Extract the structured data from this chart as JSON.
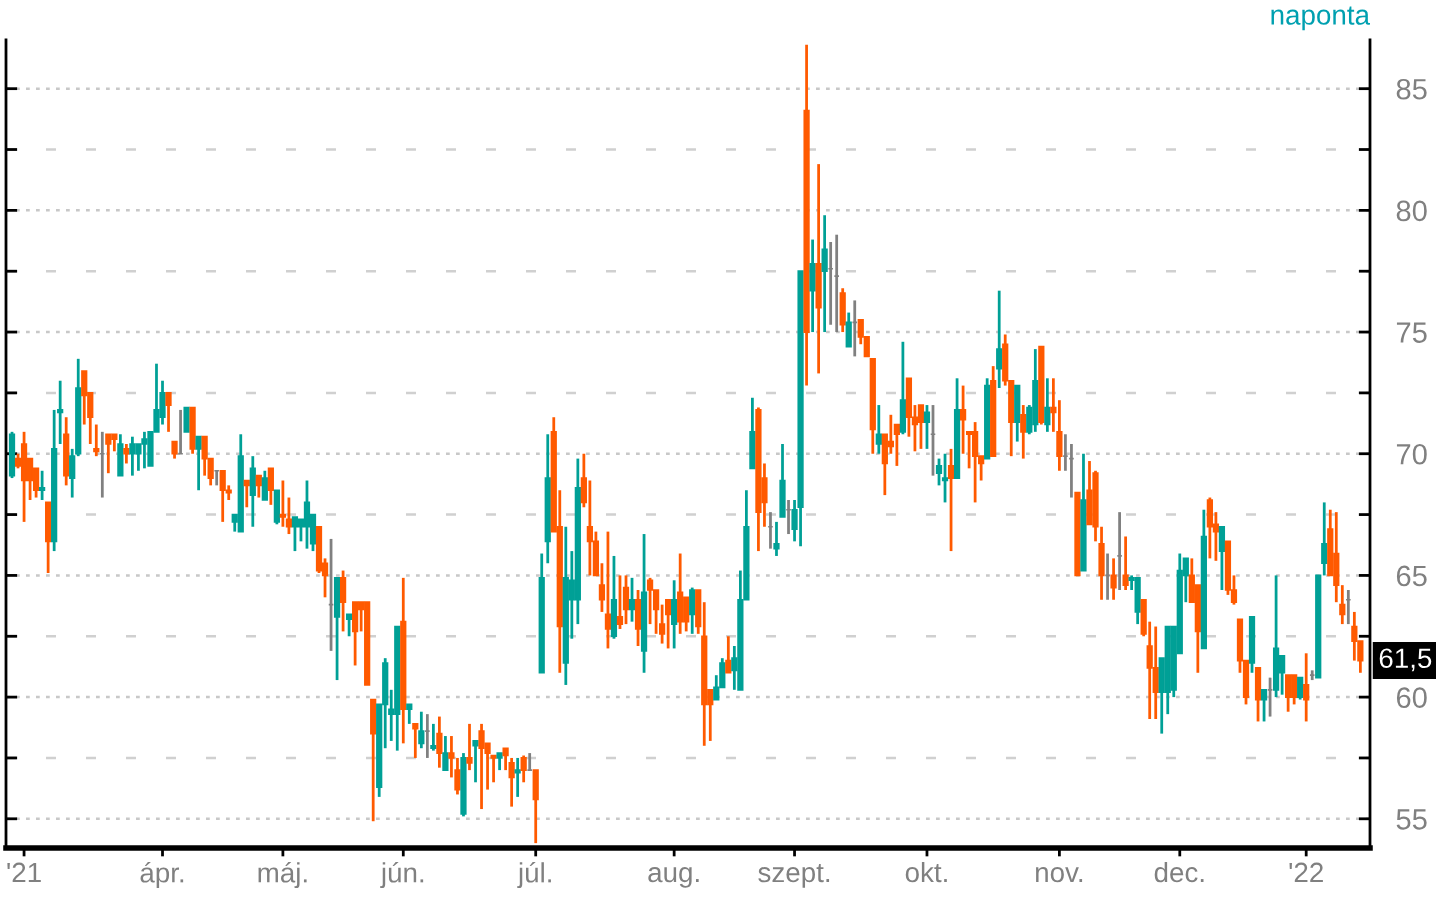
{
  "chart_data": {
    "type": "candlestick",
    "categories": [
      null,
      null,
      "'21",
      null,
      null,
      null,
      null,
      null,
      null,
      null,
      null,
      null,
      null,
      null,
      null,
      null,
      null,
      null,
      null,
      null,
      null,
      null,
      null,
      null,
      null,
      "ápr.",
      null,
      null,
      null,
      null,
      null,
      null,
      null,
      null,
      null,
      null,
      null,
      null,
      null,
      null,
      null,
      null,
      null,
      null,
      null,
      "máj.",
      null,
      null,
      null,
      null,
      null,
      null,
      null,
      null,
      null,
      null,
      null,
      null,
      null,
      null,
      null,
      null,
      null,
      null,
      null,
      "jún.",
      null,
      null,
      null,
      null,
      null,
      null,
      null,
      null,
      null,
      null,
      null,
      null,
      null,
      null,
      null,
      null,
      null,
      null,
      null,
      null,
      null,
      "júl.",
      null,
      null,
      null,
      null,
      null,
      null,
      null,
      null,
      null,
      null,
      null,
      null,
      null,
      null,
      null,
      null,
      null,
      null,
      null,
      null,
      null,
      null,
      "aug.",
      null,
      null,
      null,
      null,
      null,
      null,
      null,
      null,
      null,
      null,
      null,
      null,
      null,
      null,
      null,
      null,
      null,
      null,
      null,
      "szept.",
      null,
      null,
      null,
      null,
      null,
      null,
      null,
      null,
      null,
      null,
      null,
      null,
      null,
      null,
      null,
      null,
      null,
      null,
      null,
      null,
      null,
      "okt.",
      null,
      null,
      null,
      null,
      null,
      null,
      null,
      null,
      null,
      null,
      null,
      null,
      null,
      null,
      null,
      null,
      null,
      null,
      null,
      null,
      null,
      "nov.",
      null,
      null,
      null,
      null,
      null,
      null,
      null,
      null,
      null,
      null,
      null,
      null,
      null,
      null,
      null,
      null,
      null,
      null,
      null,
      "dec.",
      null,
      null,
      null,
      null,
      null,
      null,
      null,
      null,
      null,
      null,
      null,
      null,
      null,
      null,
      null,
      null,
      null,
      null,
      null,
      null,
      "'22",
      null,
      null,
      null,
      null,
      null,
      null,
      null,
      null,
      null
    ],
    "ohlc": [
      [
        69.1,
        70.9,
        69.0,
        70.8
      ],
      [
        69.8,
        70.0,
        69.4,
        69.5
      ],
      [
        70.4,
        70.9,
        67.2,
        68.9
      ],
      [
        69.8,
        69.8,
        68.1,
        68.9
      ],
      [
        69.4,
        69.4,
        68.2,
        68.5
      ],
      [
        68.5,
        69.3,
        68.1,
        68.6
      ],
      [
        68.0,
        68.0,
        65.1,
        66.4
      ],
      [
        66.4,
        71.8,
        66.0,
        70.2
      ],
      [
        71.7,
        73.0,
        70.4,
        71.8
      ],
      [
        70.8,
        71.5,
        68.7,
        69.1
      ],
      [
        69.0,
        70.2,
        68.2,
        69.9
      ],
      [
        70.0,
        73.9,
        69.9,
        72.7
      ],
      [
        73.4,
        73.4,
        71.2,
        72.4
      ],
      [
        72.5,
        72.5,
        70.4,
        71.5
      ],
      [
        70.2,
        71.2,
        69.9,
        70.1
      ],
      [
        70.0,
        70.9,
        68.2,
        70.0
      ],
      [
        70.8,
        70.8,
        69.2,
        70.4
      ],
      [
        70.8,
        70.8,
        70.1,
        70.6
      ],
      [
        69.1,
        70.8,
        69.1,
        70.4
      ],
      [
        70.2,
        70.4,
        69.6,
        70.0
      ],
      [
        70.0,
        70.7,
        69.1,
        70.4
      ],
      [
        70.0,
        70.4,
        69.3,
        70.4
      ],
      [
        70.4,
        70.9,
        69.4,
        70.6
      ],
      [
        69.5,
        70.9,
        69.5,
        70.9
      ],
      [
        70.9,
        73.7,
        70.9,
        71.8
      ],
      [
        71.5,
        73.0,
        71.2,
        72.5
      ],
      [
        72.5,
        72.5,
        70.9,
        72.0
      ],
      [
        70.5,
        70.5,
        69.8,
        70.0
      ],
      [
        70.0,
        71.8,
        70.0,
        70.0
      ],
      [
        70.9,
        71.9,
        70.9,
        71.9
      ],
      [
        71.9,
        71.9,
        70.0,
        70.2
      ],
      [
        70.2,
        70.7,
        68.5,
        70.7
      ],
      [
        70.7,
        70.7,
        69.1,
        69.8
      ],
      [
        69.8,
        69.8,
        68.7,
        69.0
      ],
      [
        69.3,
        69.3,
        68.7,
        69.3
      ],
      [
        69.3,
        69.3,
        67.2,
        68.5
      ],
      [
        68.5,
        68.7,
        68.1,
        68.4
      ],
      [
        67.2,
        67.5,
        66.8,
        67.5
      ],
      [
        66.8,
        70.8,
        66.8,
        69.9
      ],
      [
        68.9,
        68.9,
        67.8,
        68.7
      ],
      [
        68.3,
        69.9,
        67.0,
        69.4
      ],
      [
        69.1,
        69.1,
        68.2,
        68.7
      ],
      [
        68.1,
        69.3,
        68.1,
        69.0
      ],
      [
        69.4,
        69.4,
        67.9,
        68.5
      ],
      [
        67.2,
        68.5,
        67.1,
        68.5
      ],
      [
        67.5,
        68.9,
        67.0,
        67.4
      ],
      [
        67.3,
        68.2,
        66.7,
        67.0
      ],
      [
        67.0,
        67.4,
        66.0,
        67.4
      ],
      [
        67.0,
        67.3,
        66.4,
        67.3
      ],
      [
        67.0,
        68.9,
        66.1,
        68.0
      ],
      [
        66.3,
        67.5,
        66.0,
        67.5
      ],
      [
        67.0,
        67.0,
        65.1,
        65.2
      ],
      [
        65.5,
        65.7,
        64.1,
        65.0
      ],
      [
        63.8,
        66.5,
        61.9,
        63.8
      ],
      [
        63.3,
        64.9,
        60.7,
        64.9
      ],
      [
        64.9,
        65.2,
        62.7,
        63.9
      ],
      [
        63.2,
        63.4,
        62.5,
        63.4
      ],
      [
        63.9,
        63.9,
        61.3,
        62.7
      ],
      [
        63.9,
        63.9,
        62.7,
        63.6
      ],
      [
        63.9,
        63.9,
        60.5,
        60.5
      ],
      [
        59.9,
        59.9,
        54.9,
        58.5
      ],
      [
        56.3,
        59.7,
        55.9,
        59.7
      ],
      [
        59.7,
        61.6,
        57.9,
        61.4
      ],
      [
        59.3,
        60.3,
        58.2,
        59.5
      ],
      [
        59.3,
        62.9,
        57.8,
        62.9
      ],
      [
        63.1,
        64.9,
        58.1,
        59.5
      ],
      [
        59.5,
        59.7,
        58.9,
        59.7
      ],
      [
        58.9,
        58.9,
        57.5,
        58.7
      ],
      [
        58.1,
        59.4,
        57.9,
        58.6
      ],
      [
        58.6,
        59.3,
        57.5,
        58.6
      ],
      [
        57.9,
        58.9,
        57.8,
        58.0
      ],
      [
        58.5,
        59.2,
        57.1,
        57.7
      ],
      [
        57.0,
        58.4,
        57.0,
        57.7
      ],
      [
        57.7,
        58.4,
        56.7,
        57.5
      ],
      [
        57.0,
        57.5,
        56.0,
        56.2
      ],
      [
        55.2,
        57.7,
        55.1,
        57.5
      ],
      [
        57.5,
        58.9,
        57.0,
        57.3
      ],
      [
        58.0,
        58.2,
        56.5,
        58.2
      ],
      [
        58.6,
        58.9,
        55.4,
        57.9
      ],
      [
        58.1,
        58.1,
        56.2,
        57.7
      ],
      [
        57.6,
        57.6,
        56.5,
        57.5
      ],
      [
        57.5,
        57.7,
        57.0,
        57.7
      ],
      [
        57.9,
        57.9,
        57.0,
        57.6
      ],
      [
        57.3,
        57.5,
        55.5,
        56.7
      ],
      [
        56.9,
        57.5,
        55.9,
        57.0
      ],
      [
        57.5,
        57.6,
        56.5,
        57.0
      ],
      [
        57.0,
        57.7,
        57.0,
        57.0
      ],
      [
        57.0,
        57.0,
        54.0,
        55.8
      ],
      [
        61.0,
        65.9,
        61.0,
        64.9
      ],
      [
        66.4,
        70.8,
        65.5,
        69.0
      ],
      [
        70.9,
        71.5,
        66.8,
        66.8
      ],
      [
        67.0,
        68.5,
        61.0,
        62.9
      ],
      [
        61.4,
        67.0,
        60.5,
        64.9
      ],
      [
        64.0,
        66.0,
        62.4,
        64.8
      ],
      [
        64.0,
        69.8,
        63.0,
        68.6
      ],
      [
        69.0,
        70.0,
        67.8,
        68.0
      ],
      [
        67.0,
        68.9,
        65.0,
        66.4
      ],
      [
        66.4,
        66.8,
        65.0,
        65.0
      ],
      [
        64.6,
        65.5,
        63.5,
        64.0
      ],
      [
        63.4,
        66.8,
        62.0,
        62.8
      ],
      [
        62.5,
        65.8,
        62.4,
        64.0
      ],
      [
        63.3,
        65.0,
        62.8,
        63.0
      ],
      [
        64.5,
        65.0,
        63.0,
        63.6
      ],
      [
        63.6,
        64.9,
        63.1,
        64.0
      ],
      [
        64.0,
        64.4,
        62.1,
        62.8
      ],
      [
        61.9,
        66.7,
        61.0,
        64.3
      ],
      [
        64.8,
        64.9,
        63.0,
        64.4
      ],
      [
        64.4,
        64.4,
        62.6,
        63.6
      ],
      [
        63.0,
        63.8,
        62.2,
        62.6
      ],
      [
        64.0,
        64.0,
        62.0,
        63.4
      ],
      [
        63.0,
        64.8,
        62.0,
        64.0
      ],
      [
        64.3,
        65.9,
        62.6,
        63.1
      ],
      [
        64.1,
        64.1,
        62.7,
        63.1
      ],
      [
        63.4,
        64.5,
        62.6,
        64.4
      ],
      [
        64.4,
        64.4,
        62.6,
        62.9
      ],
      [
        62.5,
        63.9,
        58.0,
        59.7
      ],
      [
        60.3,
        60.3,
        58.2,
        59.7
      ],
      [
        59.9,
        60.9,
        59.9,
        60.4
      ],
      [
        60.4,
        61.6,
        60.4,
        61.4
      ],
      [
        61.5,
        62.5,
        61.0,
        61.0
      ],
      [
        61.1,
        62.1,
        60.3,
        61.6
      ],
      [
        60.3,
        65.2,
        60.3,
        64.0
      ],
      [
        64.0,
        68.5,
        64.0,
        67.0
      ],
      [
        69.4,
        72.3,
        69.4,
        70.9
      ],
      [
        71.8,
        71.9,
        66.0,
        67.6
      ],
      [
        69.0,
        69.6,
        67.0,
        68.0
      ],
      [
        67.0,
        67.6,
        66.1,
        67.0
      ],
      [
        66.1,
        67.2,
        65.8,
        66.3
      ],
      [
        67.4,
        70.4,
        67.4,
        68.9
      ],
      [
        67.7,
        68.1,
        66.7,
        67.7
      ],
      [
        66.9,
        68.1,
        66.4,
        67.7
      ],
      [
        67.8,
        77.5,
        66.2,
        77.5
      ],
      [
        84.1,
        86.8,
        72.8,
        75.0
      ],
      [
        76.7,
        78.8,
        75.0,
        77.8
      ],
      [
        77.8,
        81.9,
        73.3,
        76.0
      ],
      [
        77.5,
        79.8,
        75.0,
        78.4
      ],
      [
        77.6,
        78.7,
        75.3,
        77.6
      ],
      [
        77.3,
        79.0,
        75.0,
        77.3
      ],
      [
        76.6,
        76.8,
        75.0,
        75.3
      ],
      [
        74.4,
        75.8,
        74.4,
        75.4
      ],
      [
        75.4,
        76.3,
        74.0,
        75.4
      ],
      [
        75.5,
        75.5,
        74.5,
        74.8
      ],
      [
        74.8,
        74.8,
        74.0,
        74.0
      ],
      [
        73.9,
        73.9,
        70.0,
        71.0
      ],
      [
        70.4,
        72.0,
        70.0,
        70.8
      ],
      [
        70.8,
        70.8,
        68.3,
        69.6
      ],
      [
        70.5,
        71.6,
        70.0,
        70.3
      ],
      [
        71.2,
        71.2,
        69.5,
        70.8
      ],
      [
        70.9,
        74.6,
        70.8,
        72.2
      ],
      [
        73.1,
        73.1,
        70.7,
        71.5
      ],
      [
        71.5,
        72.0,
        70.1,
        71.2
      ],
      [
        72.0,
        72.0,
        70.2,
        71.3
      ],
      [
        71.3,
        72.0,
        70.2,
        71.7
      ],
      [
        70.8,
        72.0,
        69.1,
        70.8
      ],
      [
        69.2,
        69.8,
        68.7,
        69.5
      ],
      [
        68.9,
        70.0,
        68.0,
        69.0
      ],
      [
        69.5,
        70.2,
        66.0,
        69.0
      ],
      [
        69.0,
        73.1,
        69.0,
        71.8
      ],
      [
        71.8,
        72.8,
        70.0,
        71.4
      ],
      [
        70.9,
        70.9,
        69.4,
        70.8
      ],
      [
        70.9,
        71.3,
        68.0,
        69.9
      ],
      [
        69.9,
        69.9,
        68.9,
        69.6
      ],
      [
        69.8,
        73.1,
        69.8,
        72.8
      ],
      [
        73.0,
        73.6,
        69.9,
        69.9
      ],
      [
        73.5,
        76.7,
        72.7,
        74.3
      ],
      [
        74.5,
        74.9,
        72.8,
        73.0
      ],
      [
        73.0,
        73.0,
        69.9,
        71.3
      ],
      [
        71.3,
        72.8,
        70.5,
        72.8
      ],
      [
        71.6,
        72.0,
        69.8,
        70.9
      ],
      [
        70.9,
        72.0,
        70.8,
        71.9
      ],
      [
        71.2,
        74.3,
        70.9,
        73.0
      ],
      [
        74.4,
        74.4,
        71.2,
        71.3
      ],
      [
        71.2,
        73.1,
        70.9,
        71.9
      ],
      [
        71.9,
        73.1,
        70.9,
        71.7
      ],
      [
        70.9,
        72.2,
        69.3,
        69.9
      ],
      [
        69.9,
        70.8,
        69.3,
        69.9
      ],
      [
        69.8,
        70.4,
        68.2,
        69.8
      ],
      [
        68.4,
        68.4,
        65.0,
        65.0
      ],
      [
        65.2,
        70.0,
        65.2,
        68.1
      ],
      [
        68.5,
        69.7,
        67.1,
        67.1
      ],
      [
        69.2,
        69.3,
        66.4,
        67.0
      ],
      [
        66.3,
        67.0,
        64.0,
        65.0
      ],
      [
        65.0,
        65.9,
        64.0,
        65.0
      ],
      [
        65.0,
        65.7,
        64.0,
        64.5
      ],
      [
        65.8,
        67.6,
        64.4,
        65.8
      ],
      [
        65.0,
        66.6,
        64.4,
        64.6
      ],
      [
        64.8,
        65.0,
        64.4,
        64.9
      ],
      [
        63.5,
        64.9,
        63.0,
        64.9
      ],
      [
        64.0,
        64.0,
        62.5,
        62.6
      ],
      [
        62.1,
        63.1,
        59.1,
        61.2
      ],
      [
        61.2,
        62.9,
        59.1,
        60.2
      ],
      [
        60.2,
        61.6,
        58.5,
        61.6
      ],
      [
        60.2,
        62.9,
        59.3,
        62.9
      ],
      [
        60.3,
        62.9,
        60.0,
        62.9
      ],
      [
        61.8,
        65.9,
        61.8,
        65.2
      ],
      [
        65.0,
        65.7,
        63.9,
        65.7
      ],
      [
        65.0,
        65.7,
        63.9,
        63.9
      ],
      [
        64.6,
        64.6,
        61.0,
        62.7
      ],
      [
        62.0,
        67.7,
        62.0,
        66.6
      ],
      [
        68.1,
        68.2,
        65.7,
        67.0
      ],
      [
        67.1,
        67.6,
        65.6,
        66.8
      ],
      [
        66.0,
        67.0,
        64.4,
        67.0
      ],
      [
        66.4,
        66.4,
        64.2,
        64.4
      ],
      [
        64.4,
        65.0,
        63.8,
        63.9
      ],
      [
        63.2,
        63.2,
        61.0,
        61.5
      ],
      [
        61.5,
        61.5,
        59.7,
        60.0
      ],
      [
        61.4,
        63.3,
        61.0,
        63.3
      ],
      [
        61.2,
        61.2,
        59.0,
        59.9
      ],
      [
        59.9,
        60.3,
        59.0,
        60.3
      ],
      [
        60.3,
        60.8,
        59.2,
        60.3
      ],
      [
        60.3,
        65.0,
        60.0,
        62.0
      ],
      [
        61.0,
        61.7,
        60.1,
        61.7
      ],
      [
        60.9,
        60.9,
        59.4,
        60.0
      ],
      [
        60.9,
        60.9,
        59.7,
        60.0
      ],
      [
        60.0,
        60.8,
        59.9,
        60.8
      ],
      [
        60.5,
        61.8,
        59.0,
        59.9
      ],
      [
        60.9,
        61.1,
        60.7,
        60.9
      ],
      [
        60.8,
        65.0,
        60.8,
        65.0
      ],
      [
        65.5,
        68.0,
        65.0,
        66.3
      ],
      [
        66.9,
        67.7,
        65.0,
        65.0
      ],
      [
        65.9,
        67.6,
        63.9,
        64.6
      ],
      [
        63.8,
        64.6,
        63.0,
        63.4
      ],
      [
        64.0,
        64.4,
        63.0,
        64.0
      ],
      [
        62.9,
        63.5,
        61.5,
        62.3
      ],
      [
        62.3,
        62.3,
        61.0,
        61.5
      ]
    ],
    "colors": [
      "#00a096",
      "#ff5a00",
      "#ff5a00",
      "#ff5a00",
      "#ff5a00",
      "#00a096",
      "#ff5a00",
      "#00a096",
      "#00a096",
      "#ff5a00",
      "#00a096",
      "#00a096",
      "#ff5a00",
      "#ff5a00",
      "#ff5a00",
      "#808080",
      "#ff5a00",
      "#ff5a00",
      "#00a096",
      "#ff5a00",
      "#00a096",
      "#00a096",
      "#00a096",
      "#00a096",
      "#00a096",
      "#00a096",
      "#ff5a00",
      "#ff5a00",
      "#808080",
      "#00a096",
      "#ff5a00",
      "#00a096",
      "#ff5a00",
      "#ff5a00",
      "#808080",
      "#ff5a00",
      "#ff5a00",
      "#00a096",
      "#00a096",
      "#ff5a00",
      "#00a096",
      "#ff5a00",
      "#00a096",
      "#ff5a00",
      "#00a096",
      "#ff5a00",
      "#ff5a00",
      "#00a096",
      "#00a096",
      "#00a096",
      "#00a096",
      "#ff5a00",
      "#ff5a00",
      "#808080",
      "#00a096",
      "#ff5a00",
      "#00a096",
      "#ff5a00",
      "#ff5a00",
      "#ff5a00",
      "#ff5a00",
      "#00a096",
      "#00a096",
      "#00a096",
      "#00a096",
      "#ff5a00",
      "#00a096",
      "#ff5a00",
      "#00a096",
      "#808080",
      "#00a096",
      "#ff5a00",
      "#00a096",
      "#ff5a00",
      "#ff5a00",
      "#00a096",
      "#ff5a00",
      "#00a096",
      "#ff5a00",
      "#ff5a00",
      "#ff5a00",
      "#00a096",
      "#ff5a00",
      "#ff5a00",
      "#00a096",
      "#ff5a00",
      "#808080",
      "#ff5a00",
      "#00a096",
      "#00a096",
      "#ff5a00",
      "#ff5a00",
      "#00a096",
      "#00a096",
      "#00a096",
      "#ff5a00",
      "#ff5a00",
      "#ff5a00",
      "#ff5a00",
      "#ff5a00",
      "#00a096",
      "#ff5a00",
      "#ff5a00",
      "#00a096",
      "#ff5a00",
      "#00a096",
      "#ff5a00",
      "#ff5a00",
      "#ff5a00",
      "#ff5a00",
      "#00a096",
      "#ff5a00",
      "#ff5a00",
      "#00a096",
      "#ff5a00",
      "#ff5a00",
      "#ff5a00",
      "#00a096",
      "#00a096",
      "#ff5a00",
      "#00a096",
      "#00a096",
      "#00a096",
      "#00a096",
      "#ff5a00",
      "#ff5a00",
      "#808080",
      "#00a096",
      "#00a096",
      "#808080",
      "#00a096",
      "#00a096",
      "#ff5a00",
      "#00a096",
      "#ff5a00",
      "#00a096",
      "#808080",
      "#808080",
      "#ff5a00",
      "#00a096",
      "#808080",
      "#ff5a00",
      "#ff5a00",
      "#ff5a00",
      "#00a096",
      "#ff5a00",
      "#ff5a00",
      "#ff5a00",
      "#00a096",
      "#ff5a00",
      "#ff5a00",
      "#ff5a00",
      "#00a096",
      "#808080",
      "#00a096",
      "#00a096",
      "#ff5a00",
      "#00a096",
      "#ff5a00",
      "#ff5a00",
      "#ff5a00",
      "#ff5a00",
      "#00a096",
      "#ff5a00",
      "#00a096",
      "#ff5a00",
      "#ff5a00",
      "#00a096",
      "#ff5a00",
      "#00a096",
      "#00a096",
      "#ff5a00",
      "#00a096",
      "#ff5a00",
      "#ff5a00",
      "#808080",
      "#808080",
      "#ff5a00",
      "#00a096",
      "#ff5a00",
      "#ff5a00",
      "#ff5a00",
      "#808080",
      "#ff5a00",
      "#808080",
      "#ff5a00",
      "#00a096",
      "#00a096",
      "#ff5a00",
      "#ff5a00",
      "#ff5a00",
      "#00a096",
      "#00a096",
      "#00a096",
      "#00a096",
      "#00a096",
      "#ff5a00",
      "#ff5a00",
      "#00a096",
      "#ff5a00",
      "#ff5a00",
      "#00a096",
      "#ff5a00",
      "#ff5a00",
      "#ff5a00",
      "#ff5a00",
      "#00a096",
      "#ff5a00",
      "#00a096",
      "#808080",
      "#00a096",
      "#00a096",
      "#ff5a00",
      "#ff5a00",
      "#00a096",
      "#ff5a00",
      "#808080",
      "#00a096",
      "#00a096",
      "#ff5a00",
      "#ff5a00",
      "#ff5a00",
      "#808080",
      "#ff5a00",
      "#ff5a00"
    ],
    "ylim": [
      53.8,
      87.0
    ],
    "yticks": [
      55,
      {
        "value": 57.5,
        "label": null
      },
      60,
      {
        "value": 62.5,
        "label": null
      },
      65,
      {
        "value": 67.5,
        "label": null
      },
      70,
      {
        "value": 72.5,
        "label": null
      },
      75,
      {
        "value": 77.5,
        "label": null
      },
      80,
      {
        "value": 82.5,
        "label": null
      },
      85
    ],
    "grid": "y",
    "annotations": [
      "naponta",
      {
        "text": "61,5",
        "y": 61.5
      }
    ]
  }
}
